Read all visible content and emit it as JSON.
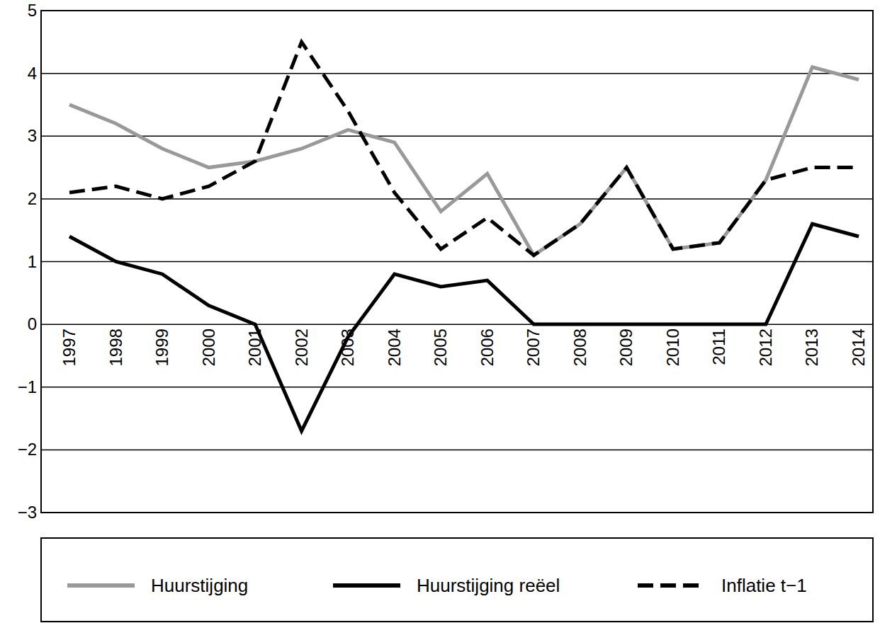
{
  "chart_data": {
    "type": "line",
    "categories": [
      "1997",
      "1998",
      "1999",
      "2000",
      "2001",
      "2002",
      "2003",
      "2004",
      "2005",
      "2006",
      "2007",
      "2008",
      "2009",
      "2010",
      "2011",
      "2012",
      "2013",
      "2014"
    ],
    "series": [
      {
        "name": "Huurstijging",
        "color": "#999999",
        "line_style": "solid",
        "values": [
          3.5,
          3.2,
          2.8,
          2.5,
          2.6,
          2.8,
          3.1,
          2.9,
          1.8,
          2.4,
          1.1,
          1.6,
          2.5,
          1.2,
          1.3,
          2.3,
          4.1,
          3.9
        ]
      },
      {
        "name": "Huurstijging reëel",
        "color": "#000000",
        "line_style": "solid",
        "values": [
          1.4,
          1.0,
          0.8,
          0.3,
          0.0,
          -1.7,
          -0.2,
          0.8,
          0.6,
          0.7,
          0.0,
          0.0,
          0.0,
          0.0,
          0.0,
          0.0,
          1.6,
          1.4
        ]
      },
      {
        "name": "Inflatie t−1",
        "color": "#000000",
        "line_style": "dashed",
        "values": [
          2.1,
          2.2,
          2.0,
          2.2,
          2.6,
          4.5,
          3.4,
          2.1,
          1.2,
          1.7,
          1.1,
          1.6,
          2.5,
          1.2,
          1.3,
          2.3,
          2.5,
          2.5
        ]
      }
    ],
    "ylim": [
      -3,
      5
    ],
    "yticks": [
      -3,
      -2,
      -1,
      0,
      1,
      2,
      3,
      4,
      5
    ],
    "grid": true,
    "legend": "bottom"
  }
}
